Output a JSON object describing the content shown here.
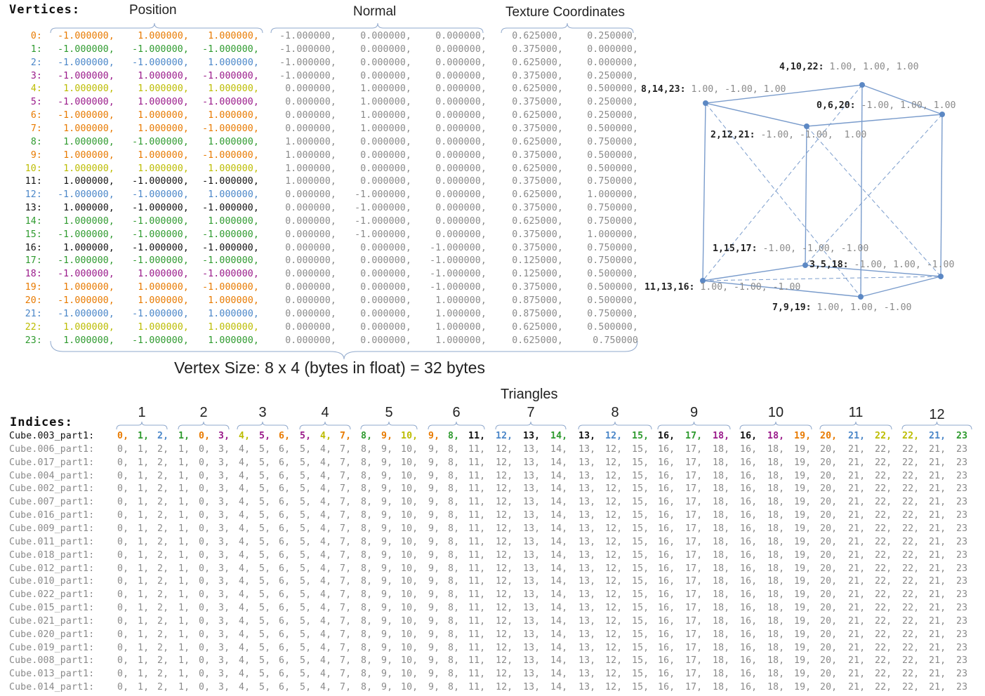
{
  "colors": {
    "orange": "#e87a00",
    "green": "#2e9a2e",
    "blue": "#4a86c8",
    "purple": "#9a1a8a",
    "gold": "#bcbc00",
    "black": "#111111",
    "gray": "#8a8a8a",
    "line": "#7a9ccc"
  },
  "headers": {
    "vertices": "Vertices:",
    "position": "Position",
    "normal": "Normal",
    "texcoords": "Texture Coordinates",
    "vertex_size": "Vertex Size: 8 x 4 (bytes in float) = 32 bytes",
    "triangles": "Triangles",
    "indices": "Indices:"
  },
  "vertices": [
    {
      "i": "0:",
      "c": "orange",
      "p": [
        "-1.000000,",
        "1.000000,",
        "1.000000,"
      ],
      "n": [
        "-1.000000,",
        "0.000000,",
        "0.000000,"
      ],
      "t": [
        "0.625000,",
        "0.250000,"
      ]
    },
    {
      "i": "1:",
      "c": "green",
      "p": [
        "-1.000000,",
        "-1.000000,",
        "-1.000000,"
      ],
      "n": [
        "-1.000000,",
        "0.000000,",
        "0.000000,"
      ],
      "t": [
        "0.375000,",
        "0.000000,"
      ]
    },
    {
      "i": "2:",
      "c": "blue",
      "p": [
        "-1.000000,",
        "-1.000000,",
        "1.000000,"
      ],
      "n": [
        "-1.000000,",
        "0.000000,",
        "0.000000,"
      ],
      "t": [
        "0.625000,",
        "0.000000,"
      ]
    },
    {
      "i": "3:",
      "c": "purple",
      "p": [
        "-1.000000,",
        "1.000000,",
        "-1.000000,"
      ],
      "n": [
        "-1.000000,",
        "0.000000,",
        "0.000000,"
      ],
      "t": [
        "0.375000,",
        "0.250000,"
      ]
    },
    {
      "i": "4:",
      "c": "gold",
      "p": [
        "1.000000,",
        "1.000000,",
        "1.000000,"
      ],
      "n": [
        "0.000000,",
        "1.000000,",
        "0.000000,"
      ],
      "t": [
        "0.625000,",
        "0.500000,"
      ]
    },
    {
      "i": "5:",
      "c": "purple",
      "p": [
        "-1.000000,",
        "1.000000,",
        "-1.000000,"
      ],
      "n": [
        "0.000000,",
        "1.000000,",
        "0.000000,"
      ],
      "t": [
        "0.375000,",
        "0.250000,"
      ]
    },
    {
      "i": "6:",
      "c": "orange",
      "p": [
        "-1.000000,",
        "1.000000,",
        "1.000000,"
      ],
      "n": [
        "0.000000,",
        "1.000000,",
        "0.000000,"
      ],
      "t": [
        "0.625000,",
        "0.250000,"
      ]
    },
    {
      "i": "7:",
      "c": "orange",
      "p": [
        "1.000000,",
        "1.000000,",
        "-1.000000,"
      ],
      "n": [
        "0.000000,",
        "1.000000,",
        "0.000000,"
      ],
      "t": [
        "0.375000,",
        "0.500000,"
      ]
    },
    {
      "i": "8:",
      "c": "green",
      "p": [
        "1.000000,",
        "-1.000000,",
        "1.000000,"
      ],
      "n": [
        "1.000000,",
        "0.000000,",
        "0.000000,"
      ],
      "t": [
        "0.625000,",
        "0.750000,"
      ]
    },
    {
      "i": "9:",
      "c": "orange",
      "p": [
        "1.000000,",
        "1.000000,",
        "-1.000000,"
      ],
      "n": [
        "1.000000,",
        "0.000000,",
        "0.000000,"
      ],
      "t": [
        "0.375000,",
        "0.500000,"
      ]
    },
    {
      "i": "10:",
      "c": "gold",
      "p": [
        "1.000000,",
        "1.000000,",
        "1.000000,"
      ],
      "n": [
        "1.000000,",
        "0.000000,",
        "0.000000,"
      ],
      "t": [
        "0.625000,",
        "0.500000,"
      ]
    },
    {
      "i": "11:",
      "c": "black",
      "p": [
        "1.000000,",
        "-1.000000,",
        "-1.000000,"
      ],
      "n": [
        "1.000000,",
        "0.000000,",
        "0.000000,"
      ],
      "t": [
        "0.375000,",
        "0.750000,"
      ]
    },
    {
      "i": "12:",
      "c": "blue",
      "p": [
        "-1.000000,",
        "-1.000000,",
        "1.000000,"
      ],
      "n": [
        "0.000000,",
        "-1.000000,",
        "0.000000,"
      ],
      "t": [
        "0.625000,",
        "1.000000,"
      ]
    },
    {
      "i": "13:",
      "c": "black",
      "p": [
        "1.000000,",
        "-1.000000,",
        "-1.000000,"
      ],
      "n": [
        "0.000000,",
        "-1.000000,",
        "0.000000,"
      ],
      "t": [
        "0.375000,",
        "0.750000,"
      ]
    },
    {
      "i": "14:",
      "c": "green",
      "p": [
        "1.000000,",
        "-1.000000,",
        "1.000000,"
      ],
      "n": [
        "0.000000,",
        "-1.000000,",
        "0.000000,"
      ],
      "t": [
        "0.625000,",
        "0.750000,"
      ]
    },
    {
      "i": "15:",
      "c": "green",
      "p": [
        "-1.000000,",
        "-1.000000,",
        "-1.000000,"
      ],
      "n": [
        "0.000000,",
        "-1.000000,",
        "0.000000,"
      ],
      "t": [
        "0.375000,",
        "1.000000,"
      ]
    },
    {
      "i": "16:",
      "c": "black",
      "p": [
        "1.000000,",
        "-1.000000,",
        "-1.000000,"
      ],
      "n": [
        "0.000000,",
        "0.000000,",
        "-1.000000,"
      ],
      "t": [
        "0.375000,",
        "0.750000,"
      ]
    },
    {
      "i": "17:",
      "c": "green",
      "p": [
        "-1.000000,",
        "-1.000000,",
        "-1.000000,"
      ],
      "n": [
        "0.000000,",
        "0.000000,",
        "-1.000000,"
      ],
      "t": [
        "0.125000,",
        "0.750000,"
      ]
    },
    {
      "i": "18:",
      "c": "purple",
      "p": [
        "-1.000000,",
        "1.000000,",
        "-1.000000,"
      ],
      "n": [
        "0.000000,",
        "0.000000,",
        "-1.000000,"
      ],
      "t": [
        "0.125000,",
        "0.500000,"
      ]
    },
    {
      "i": "19:",
      "c": "orange",
      "p": [
        "1.000000,",
        "1.000000,",
        "-1.000000,"
      ],
      "n": [
        "0.000000,",
        "0.000000,",
        "-1.000000,"
      ],
      "t": [
        "0.375000,",
        "0.500000,"
      ]
    },
    {
      "i": "20:",
      "c": "orange",
      "p": [
        "-1.000000,",
        "1.000000,",
        "1.000000,"
      ],
      "n": [
        "0.000000,",
        "0.000000,",
        "1.000000,"
      ],
      "t": [
        "0.875000,",
        "0.500000,"
      ]
    },
    {
      "i": "21:",
      "c": "blue",
      "p": [
        "-1.000000,",
        "-1.000000,",
        "1.000000,"
      ],
      "n": [
        "0.000000,",
        "0.000000,",
        "1.000000,"
      ],
      "t": [
        "0.875000,",
        "0.750000,"
      ]
    },
    {
      "i": "22:",
      "c": "gold",
      "p": [
        "1.000000,",
        "1.000000,",
        "1.000000,"
      ],
      "n": [
        "0.000000,",
        "0.000000,",
        "1.000000,"
      ],
      "t": [
        "0.625000,",
        "0.500000,"
      ]
    },
    {
      "i": "23:",
      "c": "green",
      "p": [
        "1.000000,",
        "-1.000000,",
        "1.000000,"
      ],
      "n": [
        "0.000000,",
        "0.000000,",
        "1.000000,"
      ],
      "t": [
        "0.625000,",
        "0.750000"
      ]
    }
  ],
  "cube_labels": [
    {
      "ids": "4,10,22:",
      "val": " 1.00, 1.00, 1.00"
    },
    {
      "ids": "8,14,23:",
      "val": " 1.00, -1.00, 1.00"
    },
    {
      "ids": "0,6,20:",
      "val": " -1.00, 1.00, 1.00"
    },
    {
      "ids": "2,12,21:",
      "val": " -1.00, -1.00,  1.00"
    },
    {
      "ids": "1,15,17:",
      "val": " -1.00, -1.00, -1.00"
    },
    {
      "ids": "3,5,18:",
      "val": " -1.00, 1.00, -1.00"
    },
    {
      "ids": "11,13,16:",
      "val": " 1.00, -1.00, -1.00"
    },
    {
      "ids": "7,9,19:",
      "val": " 1.00, 1.00, -1.00"
    }
  ],
  "triangles": {
    "labels": [
      "1",
      "2",
      "3",
      "4",
      "5",
      "6",
      "7",
      "8",
      "9",
      "10",
      "11",
      "12"
    ],
    "index_colors": {
      "0": "orange",
      "1": "green",
      "2": "blue",
      "3": "purple",
      "4": "gold",
      "5": "purple",
      "6": "orange",
      "7": "orange",
      "8": "green",
      "9": "orange",
      "10": "gold",
      "11": "black",
      "12": "blue",
      "13": "black",
      "14": "green",
      "15": "green",
      "16": "black",
      "17": "green",
      "18": "purple",
      "19": "orange",
      "20": "orange",
      "21": "blue",
      "22": "gold",
      "23": "green"
    },
    "tokens": [
      "0,",
      "1,",
      "2,",
      "1,",
      "0,",
      "3,",
      "4,",
      "5,",
      "6,",
      "5,",
      "4,",
      "7,",
      "8,",
      "9,",
      "10,",
      "9,",
      "8,",
      "11,",
      "12,",
      "13,",
      "14,",
      "13,",
      "12,",
      "15,",
      "16,",
      "17,",
      "18,",
      "16,",
      "18,",
      "19,",
      "20,",
      "21,",
      "22,",
      "22,",
      "21,",
      "23"
    ]
  },
  "index_rows": [
    "Cube.003_part1:",
    "Cube.006_part1:",
    "Cube.017_part1:",
    "Cube.004_part1:",
    "Cube.002_part1:",
    "Cube.007_part1:",
    "Cube.016_part1:",
    "Cube.009_part1:",
    "Cube.011_part1:",
    "Cube.018_part1:",
    "Cube.012_part1:",
    "Cube.010_part1:",
    "Cube.022_part1:",
    "Cube.015_part1:",
    "Cube.021_part1:",
    "Cube.020_part1:",
    "Cube.019_part1:",
    "Cube.008_part1:",
    "Cube.013_part1:",
    "Cube.014_part1:"
  ]
}
